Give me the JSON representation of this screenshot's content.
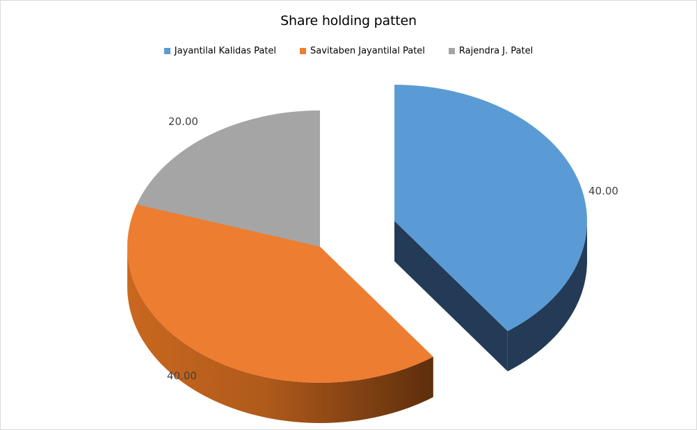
{
  "chart_data": {
    "type": "pie",
    "title": "Share holding patten",
    "legend_position": "top",
    "three_d": true,
    "exploded_slice": "Jayantilal Kalidas Patel",
    "slices": [
      {
        "name": "Jayantilal Kalidas Patel",
        "value": 40.0,
        "label": "40.00",
        "color": "#5b9bd5",
        "side_color": "#233b56"
      },
      {
        "name": "Savitaben Jayantilal Patel",
        "value": 40.0,
        "label": "40.00",
        "color": "#ed7d31",
        "side_color": "#b8561d"
      },
      {
        "name": "Rajendra J. Patel",
        "value": 20.0,
        "label": "20.00",
        "color": "#a5a5a5",
        "side_color": "#404040"
      }
    ]
  }
}
